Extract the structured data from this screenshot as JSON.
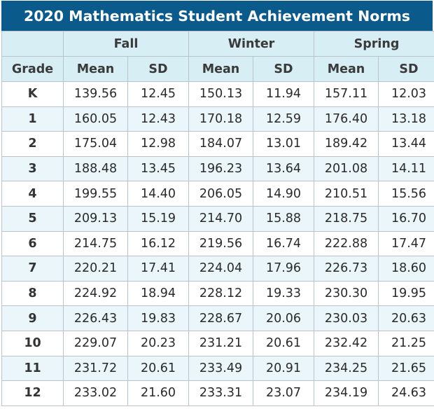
{
  "title": "2020 Mathematics Student Achievement Norms",
  "headers": {
    "grade": "Grade",
    "groups": [
      "Fall",
      "Winter",
      "Spring"
    ],
    "mean": "Mean",
    "sd": "SD"
  },
  "rows": [
    {
      "grade": "K",
      "vals": [
        "139.56",
        "12.45",
        "150.13",
        "11.94",
        "157.11",
        "12.03"
      ]
    },
    {
      "grade": "1",
      "vals": [
        "160.05",
        "12.43",
        "170.18",
        "12.59",
        "176.40",
        "13.18"
      ]
    },
    {
      "grade": "2",
      "vals": [
        "175.04",
        "12.98",
        "184.07",
        "13.01",
        "189.42",
        "13.44"
      ]
    },
    {
      "grade": "3",
      "vals": [
        "188.48",
        "13.45",
        "196.23",
        "13.64",
        "201.08",
        "14.11"
      ]
    },
    {
      "grade": "4",
      "vals": [
        "199.55",
        "14.40",
        "206.05",
        "14.90",
        "210.51",
        "15.56"
      ]
    },
    {
      "grade": "5",
      "vals": [
        "209.13",
        "15.19",
        "214.70",
        "15.88",
        "218.75",
        "16.70"
      ]
    },
    {
      "grade": "6",
      "vals": [
        "214.75",
        "16.12",
        "219.56",
        "16.74",
        "222.88",
        "17.47"
      ]
    },
    {
      "grade": "7",
      "vals": [
        "220.21",
        "17.41",
        "224.04",
        "17.96",
        "226.73",
        "18.60"
      ]
    },
    {
      "grade": "8",
      "vals": [
        "224.92",
        "18.94",
        "228.12",
        "19.33",
        "230.30",
        "19.95"
      ]
    },
    {
      "grade": "9",
      "vals": [
        "226.43",
        "19.83",
        "228.67",
        "20.06",
        "230.03",
        "20.63"
      ]
    },
    {
      "grade": "10",
      "vals": [
        "229.07",
        "20.23",
        "231.21",
        "20.61",
        "232.42",
        "21.25"
      ]
    },
    {
      "grade": "11",
      "vals": [
        "231.72",
        "20.61",
        "233.49",
        "20.91",
        "234.25",
        "21.65"
      ]
    },
    {
      "grade": "12",
      "vals": [
        "233.02",
        "21.60",
        "233.31",
        "23.07",
        "234.19",
        "24.63"
      ]
    }
  ],
  "colors": {
    "title_bg": "#0b5a8c",
    "header_bg": "#d6eef4",
    "stripe_bg": "#eaf6f9",
    "border": "#b9c3cb"
  }
}
